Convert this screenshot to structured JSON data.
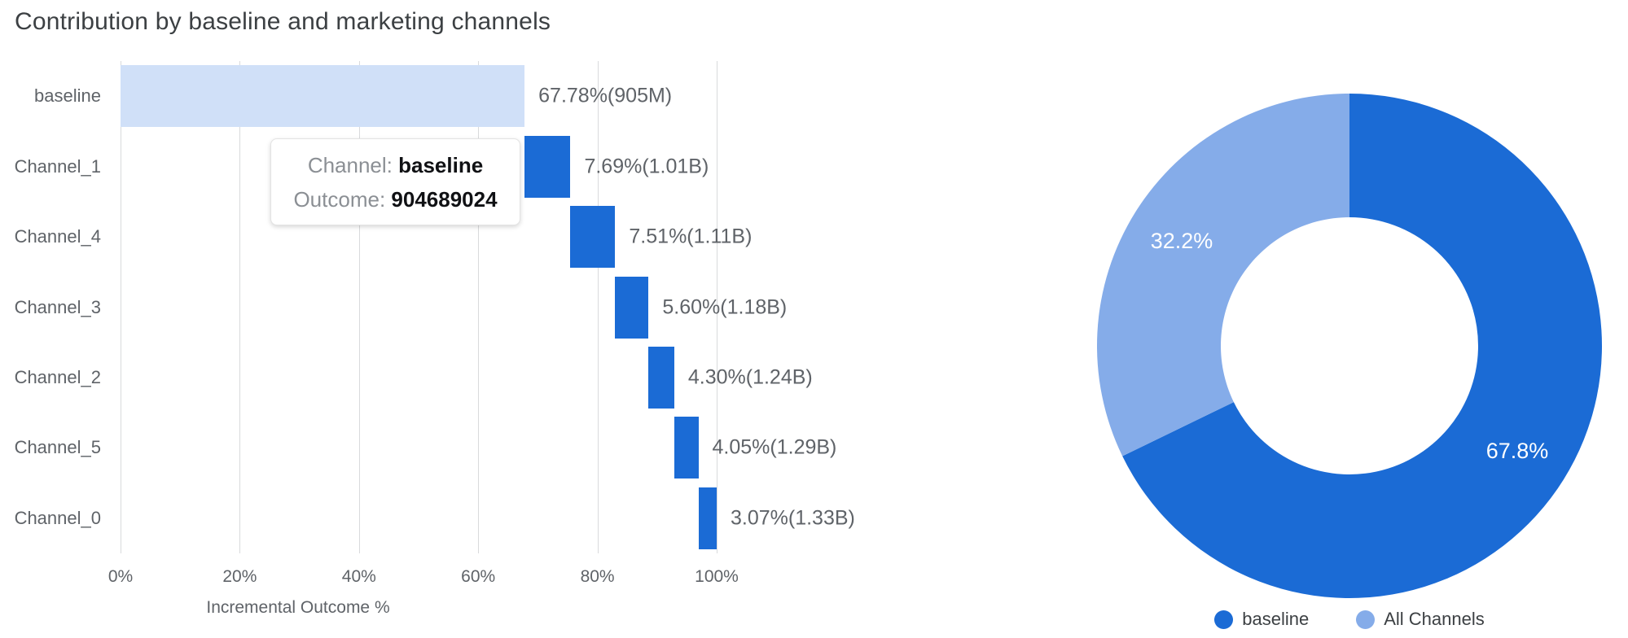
{
  "page": {
    "title": "Contribution by baseline and marketing channels"
  },
  "colors": {
    "channel_bar_blue": "#1b6bd5",
    "baseline_bar_light_blue": "#d0e0f8",
    "donut_baseline_blue": "#1b6bd5",
    "donut_all_channels_blue": "#85ace9",
    "title_text": "#3c4043",
    "axis_text": "#5f6368",
    "gridline": "#d9dadc"
  },
  "tooltip": {
    "channel_label": "Channel:",
    "channel_value": "baseline",
    "outcome_label": "Outcome:",
    "outcome_value": "904689024"
  },
  "chart_data": [
    {
      "type": "bar",
      "subtype": "horizontal-waterfall",
      "title": "Contribution by baseline and marketing channels",
      "categories": [
        "baseline",
        "Channel_1",
        "Channel_4",
        "Channel_3",
        "Channel_2",
        "Channel_5",
        "Channel_0"
      ],
      "series": [
        {
          "name": "Incremental Outcome %",
          "values": [
            67.78,
            7.69,
            7.51,
            5.6,
            4.3,
            4.05,
            3.07
          ]
        }
      ],
      "segment_start_pct": [
        0,
        67.78,
        75.47,
        82.98,
        88.58,
        92.88,
        96.93
      ],
      "segment_end_pct": [
        67.78,
        75.47,
        82.98,
        88.58,
        92.88,
        96.93,
        100.0
      ],
      "bar_labels": [
        "67.78%(905M)",
        "7.69%(1.01B)",
        "7.51%(1.11B)",
        "5.60%(1.18B)",
        "4.30%(1.24B)",
        "4.05%(1.29B)",
        "3.07%(1.33B)"
      ],
      "cumulative_outcomes": [
        "905M",
        "1.01B",
        "1.11B",
        "1.18B",
        "1.24B",
        "1.29B",
        "1.33B"
      ],
      "xlabel": "Incremental Outcome %",
      "x_ticks": [
        "0%",
        "20%",
        "40%",
        "60%",
        "80%",
        "100%"
      ],
      "x_tick_values": [
        0,
        20,
        40,
        60,
        80,
        100
      ],
      "xlim": [
        0,
        110
      ],
      "grid": "vertical"
    },
    {
      "type": "pie",
      "subtype": "donut",
      "slices": [
        {
          "label": "baseline",
          "value": 67.8,
          "display": "67.8%"
        },
        {
          "label": "All Channels",
          "value": 32.2,
          "display": "32.2%"
        }
      ],
      "start_angle_deg": 0,
      "direction": "clockwise",
      "legend_position": "bottom"
    }
  ]
}
